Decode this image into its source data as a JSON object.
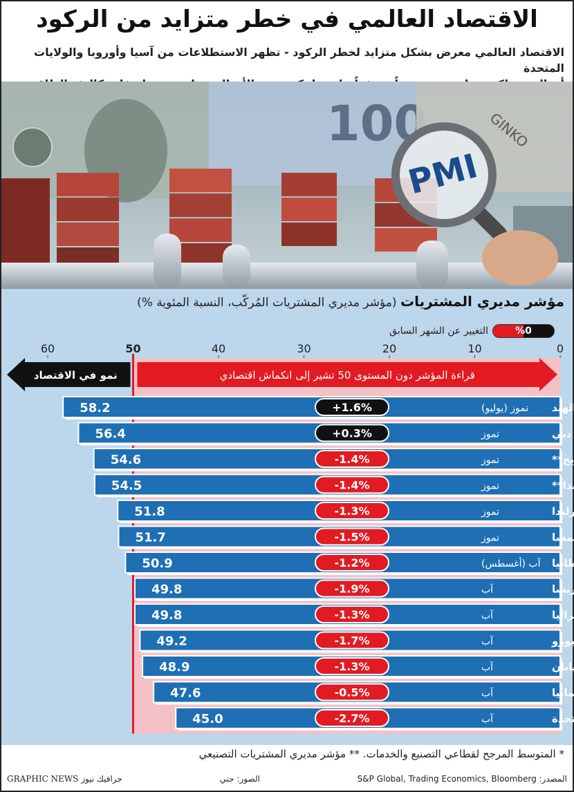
{
  "title": "الاقتصاد العالمي في خطر متزايد من الركود",
  "subtitle_line1": "الاقتصاد العالمي معرض بشكل متزايد لخطر الركود - تظهر الاستطلاعات من آسيا وأوروبا والولايات المتحدة",
  "subtitle_line2": "أن المستهلكين يواجهون تضخماً مرتفعاً عادة ما يكون بين الأجيال ويعانون من ارتفاع تكاليف الطاقة",
  "photo": {
    "magnifier_text": "PMI",
    "banknote_text": "100",
    "banknote_text_2": "GINKO"
  },
  "chart_data": {
    "type": "bar",
    "title": "مؤشر مديري المشتريات",
    "subtitle": "(مؤشر مديري المشتريات المُركّب، النسبة المئوية %)",
    "change_legend_label": "التغيير عن الشهر السابق",
    "change_legend_badge": "%0",
    "x_axis_ticks": [
      "0",
      "10",
      "20",
      "30",
      "40",
      "50",
      "60"
    ],
    "xlim": [
      0,
      62
    ],
    "threshold": 50,
    "contraction_label": "قراءة المؤشر دون المستوى 50 تشير إلى انكماش اقتصادي",
    "growth_label": "نمو في الاقتصاد",
    "categories": [
      "الهند",
      "دبي",
      "النرويج**",
      "هولندا**",
      "إيرلندا",
      "النمسا",
      "بريطانيا",
      "فرنسا",
      "أستراليا",
      "منطقة اليورو",
      "اليابان",
      "ألمانيا",
      "الولايات المتحدة"
    ],
    "months": [
      "تموز (يوليو)",
      "تموز",
      "تموز",
      "تموز",
      "تموز",
      "تموز",
      "آب (أغسطس)",
      "آب",
      "آب",
      "آب",
      "آب",
      "آب",
      "آب"
    ],
    "values": [
      58.2,
      56.4,
      54.6,
      54.5,
      51.8,
      51.7,
      50.9,
      49.8,
      49.8,
      49.2,
      48.9,
      47.6,
      45.0
    ],
    "value_labels": [
      "58.2",
      "56.4",
      "54.6",
      "54.5",
      "51.8",
      "51.7",
      "50.9",
      "49.8",
      "49.8",
      "49.2",
      "48.9",
      "47.6",
      "45.0"
    ],
    "changes": [
      1.6,
      0.3,
      -1.4,
      -1.4,
      -1.3,
      -1.5,
      -1.2,
      -1.9,
      -1.3,
      -1.7,
      -1.3,
      -0.5,
      -2.7
    ],
    "change_labels": [
      "+1.6%",
      "+0.3%",
      "-1.4%",
      "-1.4%",
      "-1.3%",
      "-1.5%",
      "-1.2%",
      "-1.9%",
      "-1.3%",
      "-1.7%",
      "-1.3%",
      "-0.5%",
      "-2.7%"
    ]
  },
  "colors": {
    "bar": "#1e6fb4",
    "positive_change": "#111111",
    "negative_change": "#e21b23",
    "panel": "#bcd6ec",
    "contraction_zone": "#f3c1c6",
    "contraction_arrow": "#e21b23",
    "growth_arrow": "#111111"
  },
  "footnote": "* المتوسط المرجح لقطاعي التصنيع والخدمات.   ** مؤشر مديري المشتريات التصنيعي",
  "footer": {
    "source": "المصدر: S&P Global, Trading Economics, Bloomberg",
    "photo_credit": "الصور: جتي",
    "brand": "GRAPHIC NEWS جرافيك نيوز"
  }
}
